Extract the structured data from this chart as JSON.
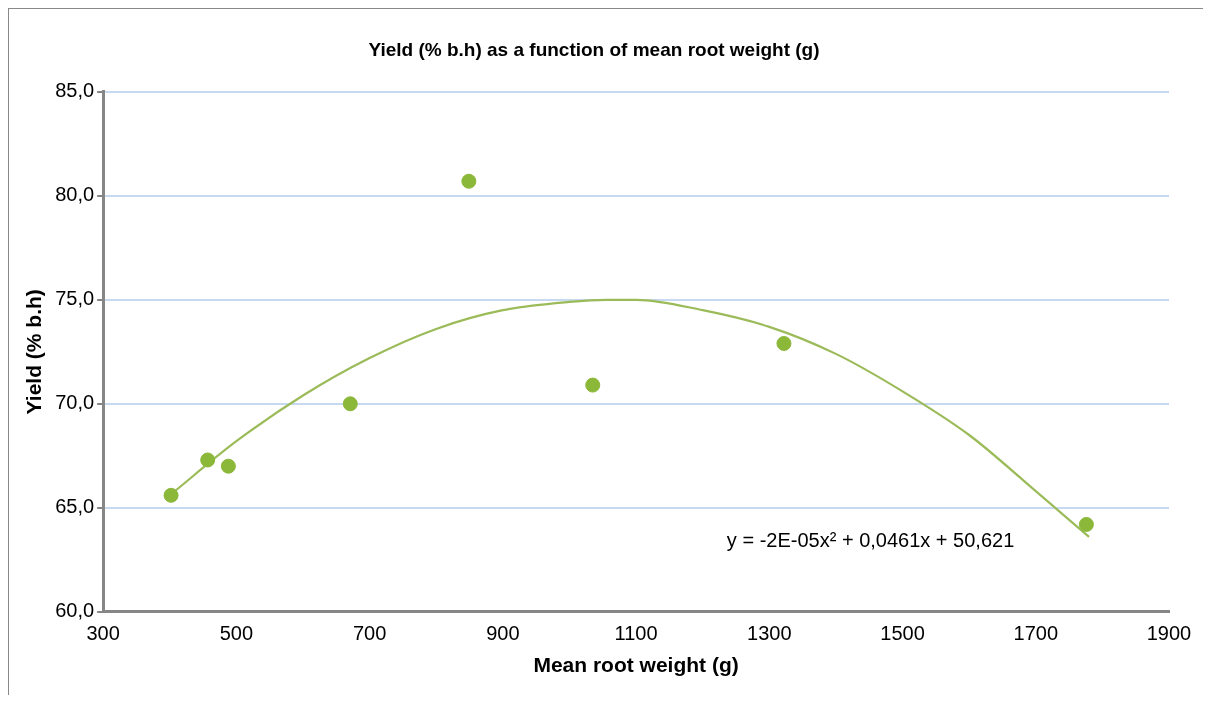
{
  "chart_data": {
    "type": "scatter",
    "title": "Yield (% b.h) as a function of mean root weight (g)",
    "xlabel": "Mean root weight (g)",
    "ylabel": "Yield (% b.h)",
    "series": [
      {
        "type": "scatter",
        "color": "#8cb83a",
        "marker": "circle",
        "x": [
          402,
          457,
          488,
          671,
          849,
          1035,
          1322,
          1776
        ],
        "values": [
          65.6,
          67.3,
          67.0,
          70.0,
          80.7,
          70.9,
          72.9,
          64.2
        ]
      },
      {
        "type": "line",
        "color": "#9bbb59",
        "marker": "none",
        "x": [
          400,
          500,
          600,
          700,
          800,
          900,
          1000,
          1055,
          1100,
          1200,
          1300,
          1400,
          1500,
          1600,
          1700,
          1780
        ],
        "values": [
          65.6,
          68.2,
          70.4,
          72.2,
          73.6,
          74.5,
          74.9,
          75.0,
          75.0,
          74.5,
          73.7,
          72.4,
          70.6,
          68.5,
          65.8,
          63.6
        ]
      }
    ],
    "annotations": [
      "y = -2E-05x² + 0,0461x + 50,621"
    ],
    "xlim": [
      300,
      1900
    ],
    "xticks": [
      300,
      500,
      700,
      900,
      1100,
      1300,
      1500,
      1700,
      1900
    ],
    "ylim": [
      60,
      85
    ],
    "yticks": [
      {
        "value": 60,
        "label": "60,0"
      },
      {
        "value": 65,
        "label": "65,0"
      },
      {
        "value": 70,
        "label": "70,0"
      },
      {
        "value": 75,
        "label": "75,0"
      },
      {
        "value": 80,
        "label": "80,0"
      },
      {
        "value": 85,
        "label": "85,0"
      }
    ],
    "grid": "y",
    "legend": false
  }
}
